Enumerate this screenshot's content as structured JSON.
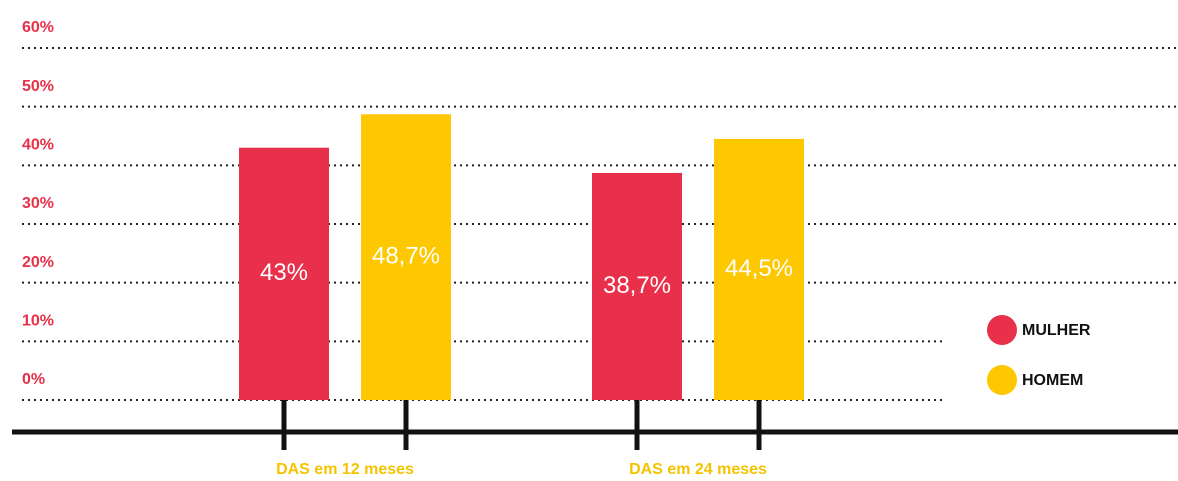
{
  "chart_data": {
    "type": "bar",
    "categories": [
      "DAS em 12 meses",
      "DAS em 24 meses"
    ],
    "series": [
      {
        "name": "MULHER",
        "color": "#e8304a",
        "values": [
          43,
          38.7
        ],
        "value_labels": [
          "43%",
          "38,7%"
        ]
      },
      {
        "name": "HOMEM",
        "color": "#fdc800",
        "values": [
          48.7,
          44.5
        ],
        "value_labels": [
          "48,7%",
          "44,5%"
        ]
      }
    ],
    "ylim": [
      0,
      60
    ],
    "yticks": [
      {
        "value": 0,
        "label": "0%"
      },
      {
        "value": 10,
        "label": "10%"
      },
      {
        "value": 20,
        "label": "20%"
      },
      {
        "value": 30,
        "label": "30%"
      },
      {
        "value": 40,
        "label": "40%"
      },
      {
        "value": 50,
        "label": "50%"
      },
      {
        "value": 60,
        "label": "60%"
      }
    ],
    "grid": true,
    "legend": "right"
  }
}
